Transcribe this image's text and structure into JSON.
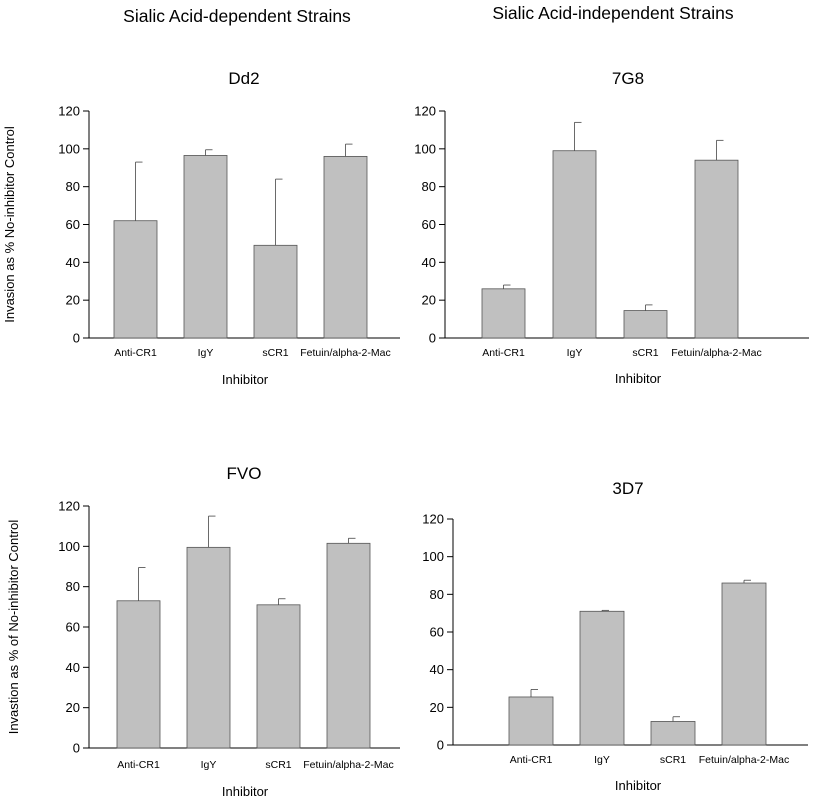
{
  "group_titles": [
    "Sialic Acid-dependent Strains",
    "Sialic Acid-independent Strains"
  ],
  "chart_data": [
    {
      "type": "bar",
      "title": "Dd2",
      "xlabel": "Inhibitor",
      "ylabel": "Invasion as % No-inhibitor Control",
      "categories": [
        "Anti-CR1",
        "IgY",
        "sCR1",
        "Fetuin/alpha-2-Mac"
      ],
      "values": [
        62,
        96.5,
        49,
        96
      ],
      "error_upper": [
        31,
        3,
        35,
        6.5
      ],
      "ylim": [
        0,
        120
      ],
      "yticks": [
        0,
        20,
        40,
        60,
        80,
        100,
        120
      ],
      "bar_color": "#c0c0c0",
      "grid": false
    },
    {
      "type": "bar",
      "title": "7G8",
      "xlabel": "Inhibitor",
      "ylabel": "",
      "categories": [
        "Anti-CR1",
        "IgY",
        "sCR1",
        "Fetuin/alpha-2-Mac"
      ],
      "values": [
        26,
        99,
        14.5,
        94
      ],
      "error_upper": [
        2,
        15,
        3,
        10.5
      ],
      "ylim": [
        0,
        120
      ],
      "yticks": [
        0,
        20,
        40,
        60,
        80,
        100,
        120
      ],
      "bar_color": "#c0c0c0",
      "grid": false
    },
    {
      "type": "bar",
      "title": "FVO",
      "xlabel": "Inhibitor",
      "ylabel": "Invastion as % of No-inhibitor Control",
      "categories": [
        "Anti-CR1",
        "IgY",
        "sCR1",
        "Fetuin/alpha-2-Mac"
      ],
      "values": [
        73,
        99.5,
        71,
        101.5
      ],
      "error_upper": [
        16.5,
        15.5,
        3,
        2.5
      ],
      "ylim": [
        0,
        120
      ],
      "yticks": [
        0,
        20,
        40,
        60,
        80,
        100,
        120
      ],
      "bar_color": "#c0c0c0",
      "grid": false
    },
    {
      "type": "bar",
      "title": "3D7",
      "xlabel": "Inhibitor",
      "ylabel": "",
      "categories": [
        "Anti-CR1",
        "IgY",
        "sCR1",
        "Fetuin/alpha-2-Mac"
      ],
      "values": [
        25.5,
        71,
        12.5,
        86
      ],
      "error_upper": [
        4,
        0.5,
        2.5,
        1.5
      ],
      "ylim": [
        0,
        120
      ],
      "yticks": [
        0,
        20,
        40,
        60,
        80,
        100,
        120
      ],
      "bar_color": "#c0c0c0",
      "grid": false
    }
  ]
}
